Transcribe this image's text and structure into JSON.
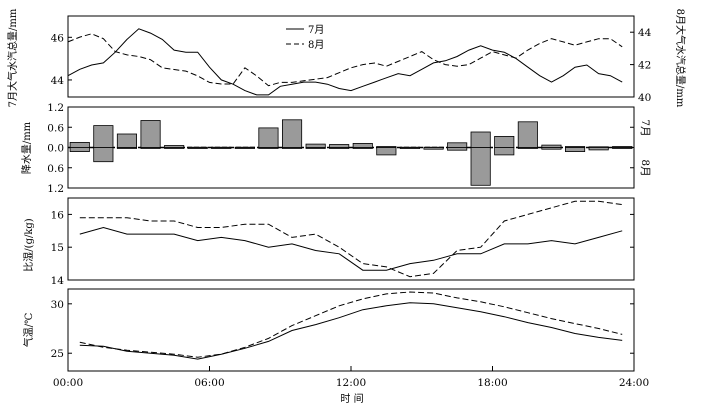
{
  "chart_data": [
    {
      "type": "line",
      "left_ylabel": "7月大气水汽总量/mm",
      "right_ylabel": "8月大气水汽总量/mm",
      "left_ylim": [
        43.2,
        47.0
      ],
      "left_yticks": [
        "44",
        "46"
      ],
      "right_ylim": [
        40,
        45
      ],
      "right_yticks": [
        "40",
        "42",
        "44"
      ],
      "legend": "top-center",
      "series": [
        {
          "name": "7月",
          "axis": "left",
          "style": "solid",
          "x": [
            0,
            0.5,
            1,
            1.5,
            2,
            2.5,
            3,
            3.5,
            4,
            4.5,
            5,
            5.5,
            6,
            6.5,
            7,
            7.5,
            8,
            8.5,
            9,
            9.5,
            10,
            10.5,
            11,
            11.5,
            12,
            12.5,
            13,
            13.5,
            14,
            14.5,
            15,
            15.5,
            16,
            16.5,
            17,
            17.5,
            18,
            18.5,
            19,
            19.5,
            20,
            20.5,
            21,
            21.5,
            22,
            22.5,
            23,
            23.5
          ],
          "values": [
            44.2,
            44.5,
            44.7,
            44.8,
            45.3,
            45.9,
            46.4,
            46.2,
            45.9,
            45.4,
            45.3,
            45.3,
            44.6,
            44.0,
            43.8,
            43.5,
            43.3,
            43.3,
            43.7,
            43.8,
            43.9,
            43.9,
            43.8,
            43.6,
            43.5,
            43.7,
            43.9,
            44.1,
            44.3,
            44.2,
            44.5,
            44.8,
            44.9,
            45.1,
            45.4,
            45.6,
            45.4,
            45.3,
            45.0,
            44.6,
            44.2,
            43.9,
            44.2,
            44.6,
            44.7,
            44.3,
            44.2,
            43.9
          ]
        },
        {
          "name": "8月",
          "axis": "right",
          "style": "dashed",
          "x": [
            0,
            0.5,
            1,
            1.5,
            2,
            2.5,
            3,
            3.5,
            4,
            4.5,
            5,
            5.5,
            6,
            6.5,
            7,
            7.5,
            8,
            8.5,
            9,
            9.5,
            10,
            10.5,
            11,
            11.5,
            12,
            12.5,
            13,
            13.5,
            14,
            14.5,
            15,
            15.5,
            16,
            16.5,
            17,
            17.5,
            18,
            18.5,
            19,
            19.5,
            20,
            20.5,
            21,
            21.5,
            22,
            22.5,
            23,
            23.5
          ],
          "values": [
            43.4,
            43.7,
            43.9,
            43.6,
            42.8,
            42.6,
            42.5,
            42.3,
            41.8,
            41.7,
            41.6,
            41.3,
            40.9,
            40.8,
            40.8,
            41.8,
            41.3,
            40.7,
            40.9,
            40.9,
            41.0,
            41.1,
            41.2,
            41.5,
            41.8,
            42.0,
            42.1,
            41.9,
            42.2,
            42.5,
            42.8,
            42.3,
            42.0,
            41.9,
            42.0,
            42.4,
            42.8,
            42.6,
            42.4,
            42.9,
            43.3,
            43.6,
            43.4,
            43.2,
            43.4,
            43.6,
            43.6,
            43.1
          ]
        }
      ]
    },
    {
      "type": "bar",
      "ylabel": "降水量/mm",
      "ylim": [
        -1.2,
        1.2
      ],
      "yticks": [
        "1.2",
        "0.6",
        "0.0",
        "0.6",
        "1.2"
      ],
      "right_labels": [
        "7月",
        "8月"
      ],
      "x": [
        0.5,
        1.5,
        2.5,
        3.5,
        4.5,
        5.5,
        6.5,
        7.5,
        8.5,
        9.5,
        10.5,
        11.5,
        12.5,
        13.5,
        14.5,
        15.5,
        16.5,
        17.5,
        18.5,
        19.5,
        20.5,
        21.5,
        22.5,
        23.5
      ],
      "series": [
        {
          "name": "7月",
          "values": [
            0.15,
            0.65,
            0.4,
            0.8,
            0.06,
            0.01,
            0.01,
            0.01,
            0.58,
            0.82,
            0.1,
            0.09,
            0.12,
            0.03,
            0.01,
            0.01,
            0.14,
            0.46,
            0.33,
            0.76,
            0.07,
            0.03,
            0.02,
            0.03
          ]
        },
        {
          "name": "8月",
          "values": [
            -0.12,
            -0.42,
            0.0,
            0.0,
            0.0,
            0.0,
            0.0,
            0.0,
            0.0,
            0.0,
            0.0,
            0.0,
            0.0,
            -0.22,
            -0.03,
            -0.05,
            -0.08,
            -1.12,
            -0.22,
            0.0,
            -0.05,
            -0.12,
            -0.07,
            -0.02
          ]
        }
      ]
    },
    {
      "type": "line",
      "ylabel": "比湿/(g/kg)",
      "ylim": [
        14,
        16.5
      ],
      "yticks": [
        "14",
        "15",
        "16"
      ],
      "series": [
        {
          "style": "solid",
          "x": [
            0.5,
            1.5,
            2.5,
            3.5,
            4.5,
            5.5,
            6.5,
            7.5,
            8.5,
            9.5,
            10.5,
            11.5,
            12.5,
            13.5,
            14.5,
            15.5,
            16.5,
            17.5,
            18.5,
            19.5,
            20.5,
            21.5,
            22.5,
            23.5
          ],
          "values": [
            15.4,
            15.6,
            15.4,
            15.4,
            15.4,
            15.2,
            15.3,
            15.2,
            15.0,
            15.1,
            14.9,
            14.8,
            14.3,
            14.3,
            14.5,
            14.6,
            14.8,
            14.8,
            15.1,
            15.1,
            15.2,
            15.1,
            15.3,
            15.5
          ]
        },
        {
          "style": "dashed",
          "x": [
            0.5,
            1.5,
            2.5,
            3.5,
            4.5,
            5.5,
            6.5,
            7.5,
            8.5,
            9.5,
            10.5,
            11.5,
            12.5,
            13.5,
            14.5,
            15.5,
            16.5,
            17.5,
            18.5,
            19.5,
            20.5,
            21.5,
            22.5,
            23.5
          ],
          "values": [
            15.9,
            15.9,
            15.9,
            15.8,
            15.8,
            15.6,
            15.6,
            15.7,
            15.7,
            15.3,
            15.4,
            15.0,
            14.5,
            14.4,
            14.1,
            14.2,
            14.9,
            15.0,
            15.8,
            16.0,
            16.2,
            16.4,
            16.4,
            16.3
          ]
        }
      ]
    },
    {
      "type": "line",
      "ylabel": "气温/℃",
      "xlabel": "时 间",
      "ylim": [
        23.2,
        31.5
      ],
      "yticks": [
        "25",
        "30"
      ],
      "xticks": [
        "00:00",
        "06:00",
        "12:00",
        "18:00",
        "24:00"
      ],
      "series": [
        {
          "style": "solid",
          "x": [
            0.5,
            1.5,
            2.5,
            3.5,
            4.5,
            5.5,
            6.5,
            7.5,
            8.5,
            9.5,
            10.5,
            11.5,
            12.5,
            13.5,
            14.5,
            15.5,
            16.5,
            17.5,
            18.5,
            19.5,
            20.5,
            21.5,
            22.5,
            23.5
          ],
          "values": [
            25.8,
            25.7,
            25.2,
            25.0,
            24.8,
            24.4,
            24.9,
            25.5,
            26.2,
            27.3,
            27.9,
            28.6,
            29.4,
            29.8,
            30.1,
            30.0,
            29.6,
            29.2,
            28.7,
            28.1,
            27.6,
            27.0,
            26.6,
            26.3
          ]
        },
        {
          "style": "dashed",
          "x": [
            0.5,
            1.5,
            2.5,
            3.5,
            4.5,
            5.5,
            6.5,
            7.5,
            8.5,
            9.5,
            10.5,
            11.5,
            12.5,
            13.5,
            14.5,
            15.5,
            16.5,
            17.5,
            18.5,
            19.5,
            20.5,
            21.5,
            22.5,
            23.5
          ],
          "values": [
            26.1,
            25.6,
            25.3,
            25.1,
            24.9,
            24.6,
            24.9,
            25.6,
            26.5,
            27.8,
            28.8,
            29.8,
            30.5,
            31.0,
            31.2,
            31.1,
            30.6,
            30.2,
            29.7,
            29.1,
            28.5,
            28.0,
            27.5,
            26.9
          ]
        }
      ]
    }
  ]
}
